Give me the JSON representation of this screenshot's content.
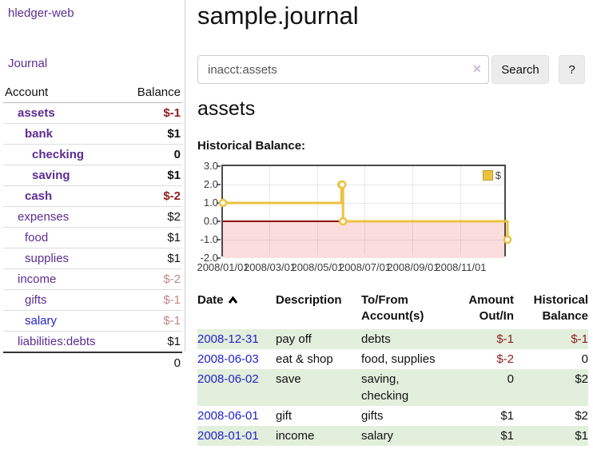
{
  "brand": "hledger-web",
  "nav": {
    "journal": "Journal"
  },
  "sidebar": {
    "columns": {
      "account": "Account",
      "balance": "Balance"
    },
    "accounts": [
      {
        "name": "assets",
        "balance": "$-1"
      },
      {
        "name": "bank",
        "balance": "$1"
      },
      {
        "name": "checking",
        "balance": "0"
      },
      {
        "name": "saving",
        "balance": "$1"
      },
      {
        "name": "cash",
        "balance": "$-2"
      },
      {
        "name": "expenses",
        "balance": "$2"
      },
      {
        "name": "food",
        "balance": "$1"
      },
      {
        "name": "supplies",
        "balance": "$1"
      },
      {
        "name": "income",
        "balance": "$-2"
      },
      {
        "name": "gifts",
        "balance": "$-1"
      },
      {
        "name": "salary",
        "balance": "$-1"
      },
      {
        "name": "liabilities:debts",
        "balance": "$1"
      }
    ],
    "total": "0"
  },
  "header": {
    "title": "sample.journal"
  },
  "search": {
    "value": "inacct:assets",
    "clear_icon": "✕",
    "button_label": "Search",
    "help_label": "?"
  },
  "account_view": {
    "title": "assets",
    "chart_heading": "Historical Balance:"
  },
  "icons": {
    "date_sort": "chevron-up-icon",
    "search_clear": "x-icon"
  },
  "colors": {
    "link_purple": "#5c2d91",
    "link_blue": "#2222cc",
    "negative_strong": "#8f1d1d",
    "negative_soft": "#c08686",
    "row_stripe_green": "#e2efdc",
    "chart_line_gold": "#edc240",
    "chart_negative_region": "#fcdddd",
    "chart_zero_line": "#8b0000"
  },
  "chart_data": {
    "type": "line",
    "step": true,
    "title": "Historical Balance",
    "legend": [
      {
        "label": "$",
        "color": "#edc240"
      }
    ],
    "legend_position": "top-right",
    "x": [
      "2008-01-01",
      "2008-06-01",
      "2008-06-02",
      "2008-06-03",
      "2008-12-31"
    ],
    "series": [
      {
        "name": "$",
        "values": [
          1,
          2,
          2,
          0,
          -1
        ]
      }
    ],
    "xlim": [
      "2008-01-01",
      "2008-12-31"
    ],
    "ylim": [
      -2,
      3
    ],
    "grid": true,
    "yticks": [
      {
        "label": "3.0",
        "value": 3
      },
      {
        "label": "2.0",
        "value": 2
      },
      {
        "label": "1.0",
        "value": 1
      },
      {
        "label": "0.0",
        "value": 0
      },
      {
        "label": "-1.0",
        "value": -1
      },
      {
        "label": "-2.0",
        "value": -2
      }
    ],
    "xticks": [
      {
        "label": "2008/01/01",
        "date": "2008-01-01"
      },
      {
        "label": "2008/03/01",
        "date": "2008-03-01"
      },
      {
        "label": "2008/05/01",
        "date": "2008-05-01"
      },
      {
        "label": "2008/07/01",
        "date": "2008-07-01"
      },
      {
        "label": "2008/09/01",
        "date": "2008-09-01"
      },
      {
        "label": "2008/11/01",
        "date": "2008-11-01"
      }
    ],
    "colors": {
      "line": "#edc240",
      "marker_fill": "#ffffff",
      "negative_region": "#fcdddd",
      "zero_line": "#8b0000"
    }
  },
  "register": {
    "columns": [
      "Date",
      "Description",
      "To/From Account(s)",
      "Amount Out/In",
      "Historical Balance"
    ],
    "rows": [
      {
        "date": "2008-12-31",
        "description": "pay off",
        "accounts": "debts",
        "amount": "$-1",
        "balance": "$-1"
      },
      {
        "date": "2008-06-03",
        "description": "eat & shop",
        "accounts": "food, supplies",
        "amount": "$-2",
        "balance": "0"
      },
      {
        "date": "2008-06-02",
        "description": "save",
        "accounts": "saving, checking",
        "amount": "0",
        "balance": "$2"
      },
      {
        "date": "2008-06-01",
        "description": "gift",
        "accounts": "gifts",
        "amount": "$1",
        "balance": "$2"
      },
      {
        "date": "2008-01-01",
        "description": "income",
        "accounts": "salary",
        "amount": "$1",
        "balance": "$1"
      }
    ]
  }
}
